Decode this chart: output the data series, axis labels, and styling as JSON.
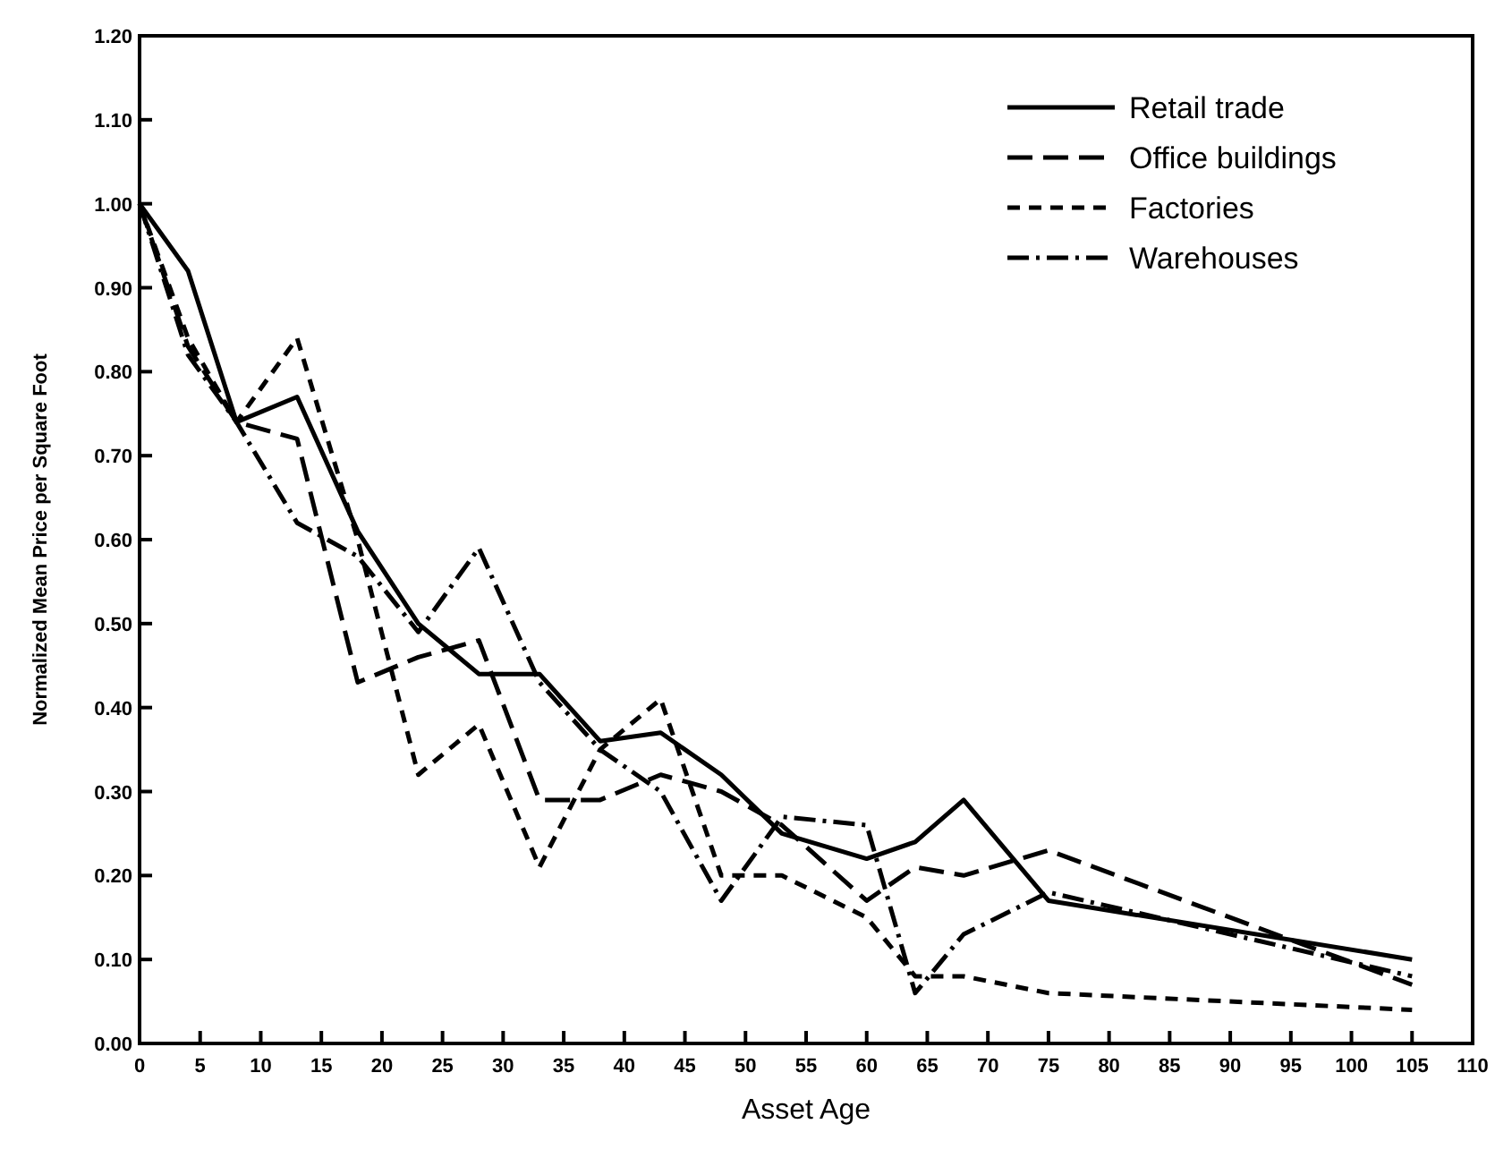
{
  "chart_data": {
    "type": "line",
    "xlabel": "Asset Age",
    "ylabel": "Normalized Mean Price per Square Foot",
    "x": [
      0,
      4,
      8,
      13,
      18,
      23,
      28,
      33,
      38,
      43,
      48,
      53,
      60,
      64,
      68,
      75,
      105
    ],
    "xlim": [
      0,
      110
    ],
    "xticks": [
      0,
      5,
      10,
      15,
      20,
      25,
      30,
      35,
      40,
      45,
      50,
      55,
      60,
      65,
      70,
      75,
      80,
      85,
      90,
      95,
      100,
      105,
      110
    ],
    "ylim": [
      0,
      1.2
    ],
    "yticks": [
      {
        "value": 0,
        "label": "0.00"
      },
      {
        "value": 0.1,
        "label": "0.10"
      },
      {
        "value": 0.2,
        "label": "0.20"
      },
      {
        "value": 0.3,
        "label": "0.30"
      },
      {
        "value": 0.4,
        "label": "0.40"
      },
      {
        "value": 0.5,
        "label": "0.50"
      },
      {
        "value": 0.6,
        "label": "0.60"
      },
      {
        "value": 0.7,
        "label": "0.70"
      },
      {
        "value": 0.8,
        "label": "0.80"
      },
      {
        "value": 0.9,
        "label": "0.90"
      },
      {
        "value": 1,
        "label": "1.00"
      },
      {
        "value": 1.1,
        "label": "1.10"
      },
      {
        "value": 1.2,
        "label": "1.20"
      }
    ],
    "legend": "top right",
    "grid": false,
    "marker": "none",
    "series": [
      {
        "name": "Retail trade",
        "color": "#000000",
        "line_style": "solid",
        "values": [
          1.0,
          0.92,
          0.74,
          0.77,
          0.61,
          0.5,
          0.44,
          0.44,
          0.36,
          0.37,
          0.32,
          0.25,
          0.22,
          0.24,
          0.29,
          0.17,
          0.1
        ]
      },
      {
        "name": "Office buildings",
        "color": "#000000",
        "line_style": "dashed",
        "values": [
          1.0,
          0.83,
          0.74,
          0.72,
          0.43,
          0.46,
          0.48,
          0.29,
          0.29,
          0.32,
          0.3,
          0.26,
          0.17,
          0.21,
          0.2,
          0.23,
          0.07
        ]
      },
      {
        "name": "Factories",
        "color": "#000000",
        "line_style": "dotted",
        "values": [
          1.0,
          0.84,
          0.74,
          0.84,
          0.6,
          0.32,
          0.38,
          0.21,
          0.35,
          0.41,
          0.2,
          0.2,
          0.15,
          0.08,
          0.08,
          0.06,
          0.04
        ]
      },
      {
        "name": "Warehouses",
        "color": "#000000",
        "line_style": "dashdot",
        "values": [
          1.0,
          0.82,
          0.74,
          0.62,
          0.58,
          0.49,
          0.59,
          0.43,
          0.35,
          0.3,
          0.17,
          0.27,
          0.26,
          0.06,
          0.13,
          0.18,
          0.08
        ]
      }
    ]
  }
}
